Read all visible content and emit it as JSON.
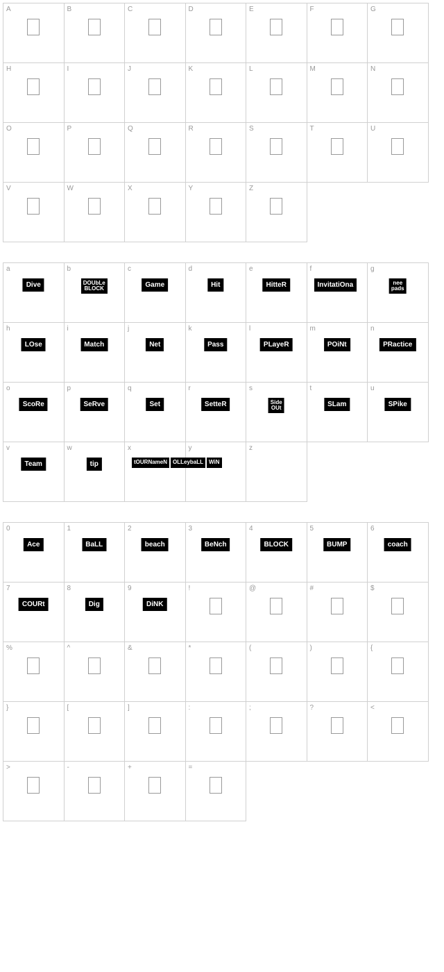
{
  "uppercase": {
    "labels": [
      "A",
      "B",
      "C",
      "D",
      "E",
      "F",
      "G",
      "H",
      "I",
      "J",
      "K",
      "L",
      "M",
      "N",
      "O",
      "P",
      "Q",
      "R",
      "S",
      "T",
      "U",
      "V",
      "W",
      "X",
      "Y",
      "Z"
    ]
  },
  "lowercase": {
    "cells": [
      {
        "label": "a",
        "word": "Dive"
      },
      {
        "label": "b",
        "word": "DOUbLe\nBLOCK",
        "stacked": true
      },
      {
        "label": "c",
        "word": "Game"
      },
      {
        "label": "d",
        "word": "Hit"
      },
      {
        "label": "e",
        "word": "HitteR"
      },
      {
        "label": "f",
        "word": "InvitatiOna",
        "overflow": true
      },
      {
        "label": "g",
        "word": "nee\npads",
        "stacked": true
      },
      {
        "label": "h",
        "word": "LOse"
      },
      {
        "label": "i",
        "word": "Match"
      },
      {
        "label": "j",
        "word": "Net"
      },
      {
        "label": "k",
        "word": "Pass"
      },
      {
        "label": "l",
        "word": "PLayeR"
      },
      {
        "label": "m",
        "word": "POiNt"
      },
      {
        "label": "n",
        "word": "PRactice"
      },
      {
        "label": "o",
        "word": "ScoRe"
      },
      {
        "label": "p",
        "word": "SeRve"
      },
      {
        "label": "q",
        "word": "Set"
      },
      {
        "label": "r",
        "word": "SetteR"
      },
      {
        "label": "s",
        "word": "Side\nOUt",
        "stacked": true
      },
      {
        "label": "t",
        "word": "SLam"
      },
      {
        "label": "u",
        "word": "SPike"
      },
      {
        "label": "v",
        "word": "Team"
      },
      {
        "label": "w",
        "word": "tip"
      },
      {
        "label": "x",
        "word": "tOURNameN",
        "multi": [
          "tOURNameN",
          "OLLeybaLL",
          "WiN"
        ]
      },
      {
        "label": "y",
        "word": ""
      },
      {
        "label": "z",
        "word": ""
      }
    ]
  },
  "symbols": {
    "cells": [
      {
        "label": "0",
        "word": "Ace"
      },
      {
        "label": "1",
        "word": "BaLL"
      },
      {
        "label": "2",
        "word": "beach"
      },
      {
        "label": "3",
        "word": "BeNch"
      },
      {
        "label": "4",
        "word": "BLOCK"
      },
      {
        "label": "5",
        "word": "BUMP"
      },
      {
        "label": "6",
        "word": "coach"
      },
      {
        "label": "7",
        "word": "COURt"
      },
      {
        "label": "8",
        "word": "Dig"
      },
      {
        "label": "9",
        "word": "DiNK"
      },
      {
        "label": "!",
        "word": ""
      },
      {
        "label": "@",
        "word": ""
      },
      {
        "label": "#",
        "word": ""
      },
      {
        "label": "$",
        "word": ""
      },
      {
        "label": "%",
        "word": ""
      },
      {
        "label": "^",
        "word": ""
      },
      {
        "label": "&",
        "word": ""
      },
      {
        "label": "*",
        "word": ""
      },
      {
        "label": "(",
        "word": ""
      },
      {
        "label": ")",
        "word": ""
      },
      {
        "label": "{",
        "word": ""
      },
      {
        "label": "}",
        "word": ""
      },
      {
        "label": "[",
        "word": ""
      },
      {
        "label": "]",
        "word": ""
      },
      {
        "label": ":",
        "word": ""
      },
      {
        "label": ";",
        "word": ""
      },
      {
        "label": "?",
        "word": ""
      },
      {
        "label": "<",
        "word": ""
      },
      {
        "label": ">",
        "word": ""
      },
      {
        "label": "-",
        "word": ""
      },
      {
        "label": "+",
        "word": ""
      },
      {
        "label": "=",
        "word": ""
      }
    ]
  },
  "colors": {
    "border": "#d0d0d0",
    "label": "#999999",
    "word_bg": "#000000",
    "word_fg": "#ffffff",
    "background": "#ffffff"
  }
}
